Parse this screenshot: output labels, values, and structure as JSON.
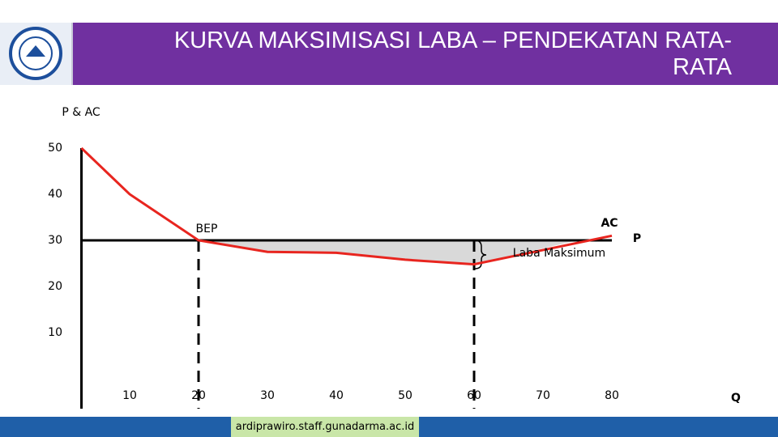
{
  "header": {
    "title": "KURVA MAKSIMISASI LABA – PENDEKATAN RATA-RATA"
  },
  "chart_data": {
    "type": "line",
    "ylabel": "P & AC",
    "xlabel": "Q",
    "xlim": [
      3,
      90
    ],
    "ylim": [
      -6.5,
      50
    ],
    "xticks": [
      10,
      20,
      30,
      40,
      50,
      60,
      70,
      80
    ],
    "yticks": [
      10,
      20,
      30,
      40,
      50
    ],
    "series": [
      {
        "name": "AC",
        "color": "#e8251f",
        "x": [
          3,
          10,
          20,
          30,
          40,
          50,
          60,
          80
        ],
        "values": [
          50,
          40,
          30,
          27.5,
          27.3,
          25.8,
          24.8,
          31
        ]
      },
      {
        "name": "P",
        "color": "#000000",
        "x": [
          3,
          80
        ],
        "values": [
          30,
          30
        ]
      }
    ],
    "vlines": [
      20,
      60
    ],
    "annotations": [
      "BEP",
      "Laba Maksimum"
    ]
  },
  "footer": {
    "url": "ardiprawiro.staff.gunadarma.ac.id"
  }
}
